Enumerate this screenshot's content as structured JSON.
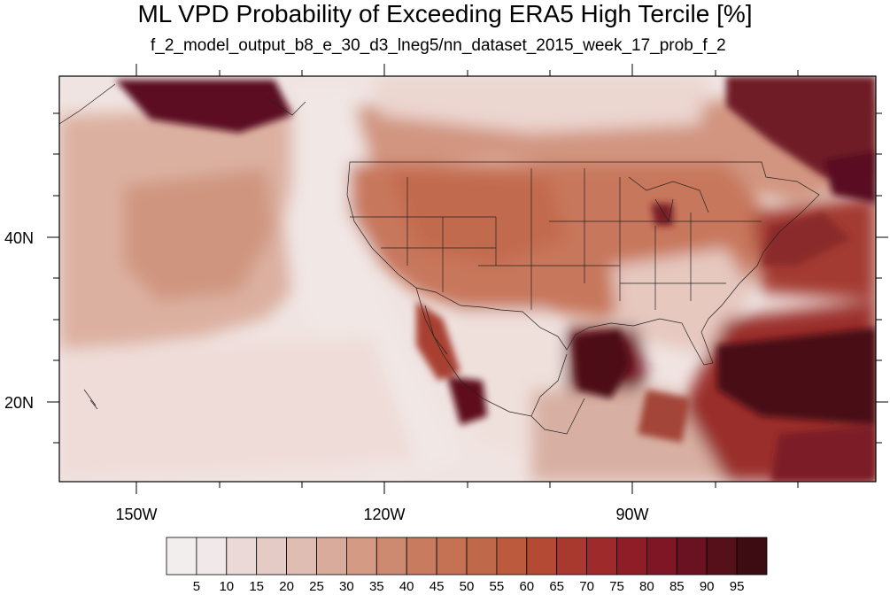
{
  "title": "ML VPD Probability of Exceeding ERA5 High Tercile [%]",
  "subtitle": "f_2_model_output_b8_e_30_d3_lneg5/nn_dataset_2015_week_17_prob_f_2",
  "axes": {
    "lon_labels": [
      "150W",
      "120W",
      "90W"
    ],
    "lat_labels": [
      "40N",
      "20N"
    ]
  },
  "colorbar": {
    "labels": [
      "5",
      "10",
      "15",
      "20",
      "25",
      "30",
      "35",
      "40",
      "45",
      "50",
      "55",
      "60",
      "65",
      "70",
      "75",
      "80",
      "85",
      "90",
      "95"
    ],
    "colors": [
      "#f1e9e9",
      "#ead9d7",
      "#e4cbc6",
      "#dfbdb3",
      "#d9ab9c",
      "#d49a84",
      "#cd8a70",
      "#c87b5f",
      "#c47154",
      "#c0684a",
      "#bb5a3d",
      "#b44a33",
      "#a9392e",
      "#9f2a2b",
      "#8e1d28",
      "#7e1626",
      "#6b1222",
      "#551019",
      "#3d0b12"
    ]
  }
}
